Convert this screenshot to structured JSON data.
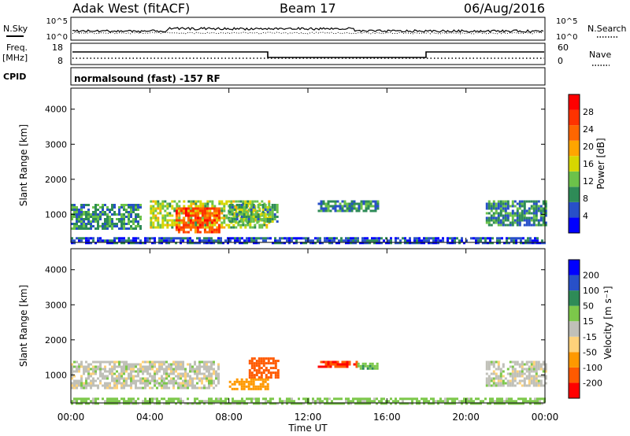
{
  "header": {
    "station": "Adak West (fitACF)",
    "beam": "Beam 17",
    "date": "06/Aug/2016"
  },
  "strips": {
    "nsky_label": "N.Sky",
    "nsky_ticks": [
      "10^5",
      "10^0"
    ],
    "nsearch_label": "N.Search",
    "freq_label_line1": "Freq.",
    "freq_label_line2": "[MHz]",
    "freq_ticks": [
      "18",
      "8"
    ],
    "nave_label": "Nave",
    "nave_ticks": [
      "60",
      "0"
    ],
    "cpid_label": "CPID",
    "cpid_text": "normalsound (fast) -157 RF"
  },
  "colors": {
    "power_scale": [
      "#0000ff",
      "#2850c8",
      "#2e8b57",
      "#6cc24a",
      "#d7d700",
      "#ffa500",
      "#ff6600",
      "#ff3300",
      "#ff0000"
    ],
    "velocity_scale": [
      "#ff0000",
      "#ff5a00",
      "#ff9900",
      "#ffd27a",
      "#c0c0b8",
      "#7cc84a",
      "#2e8b57",
      "#2850c8",
      "#0000ff"
    ]
  },
  "chart_data": [
    {
      "type": "heatmap",
      "name": "power-panel",
      "xlabel": "",
      "ylabel": "Slant Range [km]",
      "yticks": [
        1000,
        2000,
        3000,
        4000
      ],
      "ylim": [
        200,
        4600
      ],
      "colorbar": {
        "label": "Power [dB]",
        "ticks": [
          4,
          8,
          12,
          16,
          20,
          24,
          28
        ],
        "range": [
          0,
          32
        ]
      },
      "regions": [
        {
          "t0": 0.0,
          "t1": 3.5,
          "r0": 600,
          "r1": 1300,
          "value": 10
        },
        {
          "t0": 4.0,
          "t1": 10.0,
          "r0": 600,
          "r1": 1400,
          "value": 16
        },
        {
          "t0": 5.3,
          "t1": 7.5,
          "r0": 500,
          "r1": 1200,
          "value": 28
        },
        {
          "t0": 8.0,
          "t1": 10.5,
          "r0": 800,
          "r1": 1300,
          "value": 12
        },
        {
          "t0": 12.5,
          "t1": 15.5,
          "r0": 1100,
          "r1": 1400,
          "value": 10
        },
        {
          "t0": 21.0,
          "t1": 24.0,
          "r0": 700,
          "r1": 1400,
          "value": 10
        },
        {
          "t0": 0.0,
          "t1": 24.0,
          "r0": 200,
          "r1": 350,
          "value": 6
        }
      ]
    },
    {
      "type": "heatmap",
      "name": "velocity-panel",
      "xlabel": "Time UT",
      "ylabel": "Slant Range [km]",
      "xticks": [
        "00:00",
        "04:00",
        "08:00",
        "12:00",
        "16:00",
        "20:00",
        "00:00"
      ],
      "xlim": [
        0,
        24
      ],
      "yticks": [
        1000,
        2000,
        3000,
        4000
      ],
      "ylim": [
        200,
        4600
      ],
      "colorbar": {
        "label": "Velocity [m s⁻¹]",
        "ticks": [
          -200,
          -100,
          -50,
          -15,
          15,
          50,
          100,
          200
        ]
      },
      "regions": [
        {
          "t0": 0.0,
          "t1": 7.5,
          "r0": 600,
          "r1": 1400,
          "value": 0
        },
        {
          "t0": 9.0,
          "t1": 10.5,
          "r0": 900,
          "r1": 1500,
          "value": -120
        },
        {
          "t0": 8.0,
          "t1": 10.0,
          "r0": 600,
          "r1": 900,
          "value": -70
        },
        {
          "t0": 12.5,
          "t1": 14.5,
          "r0": 1200,
          "r1": 1400,
          "value": -200
        },
        {
          "t0": 14.5,
          "t1": 15.5,
          "r0": 1150,
          "r1": 1350,
          "value": 40
        },
        {
          "t0": 21.0,
          "t1": 24.0,
          "r0": 700,
          "r1": 1400,
          "value": 0
        },
        {
          "t0": 0.0,
          "t1": 24.0,
          "r0": 200,
          "r1": 350,
          "value": 30
        }
      ]
    }
  ]
}
